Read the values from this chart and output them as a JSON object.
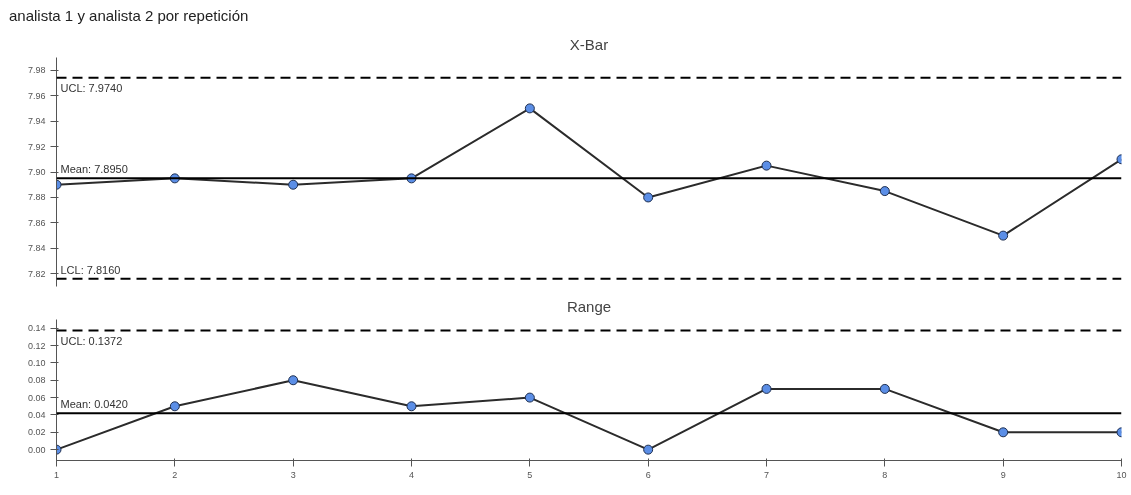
{
  "chart_data": [
    {
      "type": "line",
      "title": "analista 1 y analista 2 por repetición",
      "subtitle": "X-Bar",
      "x": [
        1,
        2,
        3,
        4,
        5,
        6,
        7,
        8,
        9,
        10
      ],
      "xlim": [
        1,
        10
      ],
      "tick_labels": "y",
      "marker": "circle",
      "grid": false,
      "series": [
        {
          "color": "#5b8ee6",
          "values": [
            7.89,
            7.895,
            7.89,
            7.895,
            7.95,
            7.88,
            7.905,
            7.885,
            7.85,
            7.91
          ]
        }
      ],
      "ylim": [
        7.81,
        7.99
      ],
      "yticks": [
        7.82,
        7.84,
        7.86,
        7.88,
        {
          "value": 7.9,
          "label": "7.90"
        },
        7.92,
        7.94,
        7.96,
        7.98
      ],
      "ref_lines": [
        {
          "axis": "y",
          "value": 7.974,
          "label": "UCL: 7.9740",
          "line_style": "dashed",
          "color": "#000000"
        },
        {
          "axis": "y",
          "value": 7.895,
          "label": "Mean: 7.8950",
          "line_style": "solid",
          "color": "#000000"
        },
        {
          "axis": "y",
          "value": 7.816,
          "label": "LCL: 7.8160",
          "line_style": "dashed",
          "color": "#000000"
        }
      ]
    },
    {
      "type": "line",
      "title": "Range",
      "x": [
        1,
        2,
        3,
        4,
        5,
        6,
        7,
        8,
        9,
        10
      ],
      "xlim": [
        1,
        10
      ],
      "xticks": [
        1,
        2,
        3,
        4,
        5,
        6,
        7,
        8,
        9,
        10
      ],
      "marker": "circle",
      "grid": false,
      "series": [
        {
          "color": "#5b8ee6",
          "values": [
            0,
            0.05,
            0.08,
            0.05,
            0.06,
            0,
            0.07,
            0.07,
            0.02,
            0.02
          ]
        }
      ],
      "ylim": [
        -0.0125,
        0.15
      ],
      "yticks": [
        {
          "value": 0,
          "label": "0.00"
        },
        0.02,
        0.04,
        0.06,
        0.08,
        {
          "value": 0.1,
          "label": "0.10"
        },
        0.12,
        0.14
      ],
      "ref_lines": [
        {
          "axis": "y",
          "value": 0.1372,
          "label": "UCL: 0.1372",
          "line_style": "dashed",
          "color": "#000000"
        },
        {
          "axis": "y",
          "value": 0.042,
          "label": "Mean: 0.0420",
          "line_style": "solid",
          "color": "#000000"
        }
      ]
    }
  ]
}
